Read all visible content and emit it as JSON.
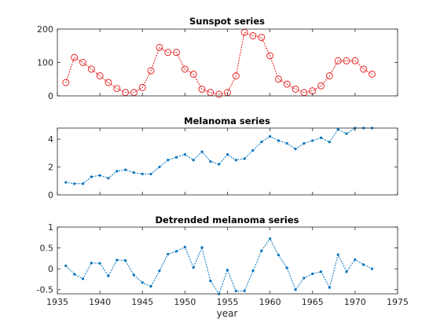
{
  "figure": {
    "background": "#ffffff"
  },
  "chart_data": [
    {
      "type": "line",
      "title": "Sunspot series",
      "xlabel": "",
      "ylabel": "",
      "xlim": [
        1935,
        1975
      ],
      "ylim": [
        0,
        200
      ],
      "yticks": [
        0,
        100,
        200
      ],
      "ytick_labels": [
        "0",
        "100",
        "200"
      ],
      "xticks": [
        1935,
        1940,
        1945,
        1950,
        1955,
        1960,
        1965,
        1970,
        1975
      ],
      "show_xtick_labels": false,
      "grid": false,
      "color": "#e41a1c",
      "line_style": "dotted",
      "marker": "open-circle",
      "series": [
        {
          "x": [
            1936,
            1937,
            1938,
            1939,
            1940,
            1941,
            1942,
            1943,
            1944,
            1945,
            1946,
            1947,
            1948,
            1949,
            1950,
            1951,
            1952,
            1953,
            1954,
            1955,
            1956,
            1957,
            1958,
            1959,
            1960,
            1961,
            1962,
            1963,
            1964,
            1965,
            1966,
            1967,
            1968,
            1969,
            1970,
            1971,
            1972
          ],
          "values": [
            40,
            115,
            100,
            80,
            60,
            40,
            22,
            10,
            10,
            25,
            75,
            145,
            130,
            130,
            80,
            65,
            20,
            10,
            5,
            10,
            60,
            190,
            180,
            175,
            120,
            50,
            35,
            20,
            10,
            15,
            30,
            60,
            105,
            105,
            105,
            80,
            65
          ]
        }
      ]
    },
    {
      "type": "line",
      "title": "Melanoma series",
      "xlabel": "",
      "ylabel": "",
      "xlim": [
        1935,
        1975
      ],
      "ylim": [
        0,
        4.8
      ],
      "yticks": [
        0,
        2,
        4
      ],
      "ytick_labels": [
        "0",
        "2",
        "4"
      ],
      "xticks": [
        1935,
        1940,
        1945,
        1950,
        1955,
        1960,
        1965,
        1970,
        1975
      ],
      "show_xtick_labels": false,
      "grid": false,
      "color": "#0072bd",
      "line_style": "dotted",
      "marker": "dot",
      "series": [
        {
          "x": [
            1936,
            1937,
            1938,
            1939,
            1940,
            1941,
            1942,
            1943,
            1944,
            1945,
            1946,
            1947,
            1948,
            1949,
            1950,
            1951,
            1952,
            1953,
            1954,
            1955,
            1956,
            1957,
            1958,
            1959,
            1960,
            1961,
            1962,
            1963,
            1964,
            1965,
            1966,
            1967,
            1968,
            1969,
            1970,
            1971,
            1972
          ],
          "values": [
            0.9,
            0.8,
            0.8,
            1.3,
            1.4,
            1.2,
            1.7,
            1.8,
            1.6,
            1.5,
            1.5,
            2.0,
            2.5,
            2.7,
            2.9,
            2.5,
            3.1,
            2.4,
            2.2,
            2.9,
            2.5,
            2.6,
            3.2,
            3.8,
            4.2,
            3.9,
            3.7,
            3.3,
            3.7,
            3.9,
            4.1,
            3.8,
            4.7,
            4.4,
            4.8,
            4.8,
            4.8
          ]
        }
      ]
    },
    {
      "type": "line",
      "title": "Detrended melanoma series",
      "xlabel": "year",
      "ylabel": "",
      "xlim": [
        1935,
        1975
      ],
      "ylim": [
        -0.6,
        1
      ],
      "yticks": [
        -0.5,
        0,
        0.5,
        1
      ],
      "ytick_labels": [
        "-0.5",
        "0",
        "0.5",
        "1"
      ],
      "xticks": [
        1935,
        1940,
        1945,
        1950,
        1955,
        1960,
        1965,
        1970,
        1975
      ],
      "xtick_labels": [
        "1935",
        "1940",
        "1945",
        "1950",
        "1955",
        "1960",
        "1965",
        "1970",
        "1975"
      ],
      "show_xtick_labels": true,
      "grid": false,
      "color": "#0072bd",
      "line_style": "dotted",
      "marker": "dot",
      "series": [
        {
          "x": [
            1936,
            1937,
            1938,
            1939,
            1940,
            1941,
            1942,
            1943,
            1944,
            1945,
            1946,
            1947,
            1948,
            1949,
            1950,
            1951,
            1952,
            1953,
            1954,
            1955,
            1956,
            1957,
            1958,
            1959,
            1960,
            1961,
            1962,
            1963,
            1964,
            1965,
            1966,
            1967,
            1968,
            1969,
            1970,
            1971,
            1972
          ],
          "values": [
            0.07,
            -0.13,
            -0.24,
            0.14,
            0.13,
            -0.17,
            0.21,
            0.2,
            -0.15,
            -0.33,
            -0.42,
            -0.05,
            0.35,
            0.42,
            0.52,
            0.03,
            0.51,
            -0.29,
            -0.6,
            -0.03,
            -0.53,
            -0.53,
            -0.05,
            0.43,
            0.72,
            0.33,
            0.02,
            -0.5,
            -0.22,
            -0.12,
            -0.07,
            -0.45,
            0.34,
            -0.07,
            0.22,
            0.1,
            0.0
          ]
        }
      ]
    }
  ]
}
